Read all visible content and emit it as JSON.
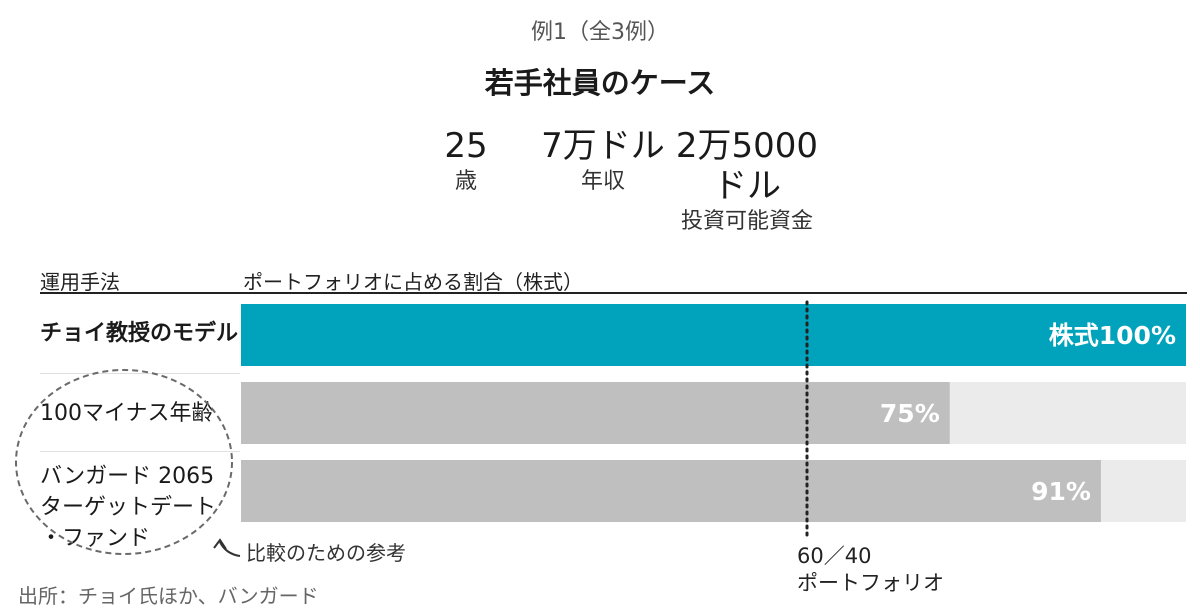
{
  "header": {
    "subtitle": "例1（全3例）",
    "title": "若手社員のケース"
  },
  "stats": [
    {
      "value": "25",
      "label": "歳"
    },
    {
      "value": "7万ドル",
      "label": "年収"
    },
    {
      "value": "2万5000\nドル",
      "label": "投資可能資金"
    }
  ],
  "chart_data": {
    "type": "bar",
    "orientation": "horizontal",
    "column_headers": {
      "method": "運用手法",
      "portfolio": "ポートフォリオに占める割合（株式）"
    },
    "categories": [
      "チョイ教授のモデル",
      "100マイナス年齢",
      "バンガード 2065\nターゲットデート\n・ファンド"
    ],
    "values": [
      100,
      75,
      91
    ],
    "value_labels": [
      "株式100%",
      "75%",
      "91%"
    ],
    "xlim": [
      0,
      100
    ],
    "reference_line": {
      "value": 60,
      "label": "60／40\nポートフォリオ"
    },
    "colors": {
      "highlight": "#00a3bb",
      "bar": "#bfbfbf",
      "track": "#ebebec",
      "label_text": "#ffffff"
    },
    "grid": false
  },
  "annotation": {
    "note": "比較のための参考"
  },
  "source": "出所：チョイ氏ほか、バンガード"
}
